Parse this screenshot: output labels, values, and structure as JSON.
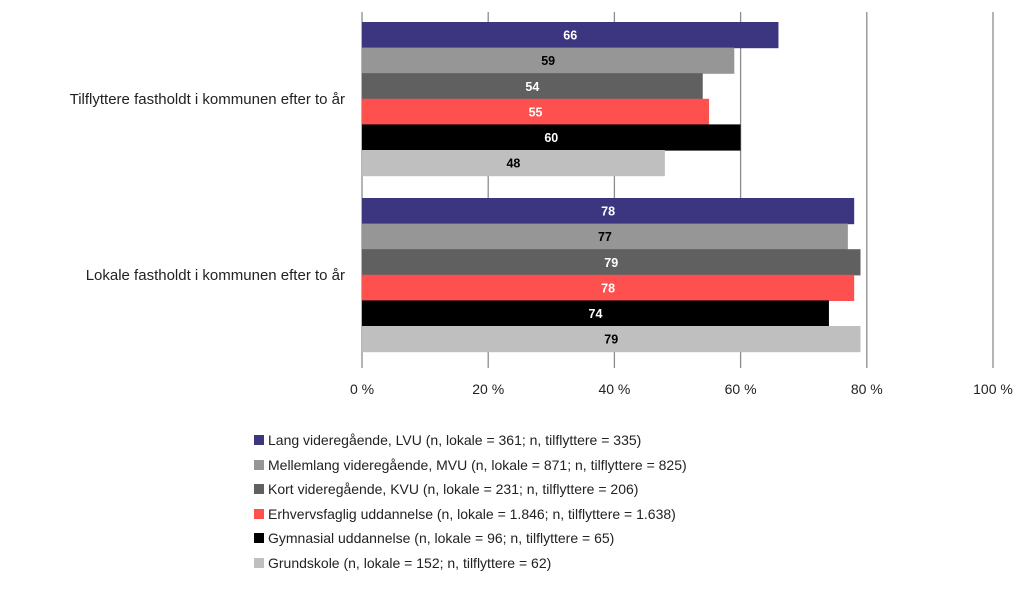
{
  "chart_data": {
    "type": "bar",
    "orientation": "horizontal",
    "title": "",
    "xlabel": "",
    "ylabel": "",
    "categories": [
      "Tilflyttere fastholdt i kommunen efter to år",
      "Lokale fastholdt i kommunen efter to år"
    ],
    "series": [
      {
        "name": "Lang videregående, LVU (n, lokale = 361; n, tilflyttere = 335)",
        "values": [
          66,
          78
        ],
        "color": "#3C3580",
        "label_color": "#ffffff"
      },
      {
        "name": "Mellemlang videregående, MVU (n, lokale = 871; n, tilflyttere = 825)",
        "values": [
          59,
          77
        ],
        "color": "#969696",
        "label_color": "#000000"
      },
      {
        "name": "Kort videregående, KVU (n, lokale = 231; n, tilflyttere = 206)",
        "values": [
          54,
          79
        ],
        "color": "#606060",
        "label_color": "#ffffff"
      },
      {
        "name": "Erhvervsfaglig uddannelse (n, lokale = 1.846; n, tilflyttere = 1.638)",
        "values": [
          55,
          78
        ],
        "color": "#FF5050",
        "label_color": "#ffffff"
      },
      {
        "name": "Gymnasial uddannelse (n, lokale = 96; n, tilflyttere = 65)",
        "values": [
          60,
          74
        ],
        "color": "#000000",
        "label_color": "#ffffff"
      },
      {
        "name": "Grundskole (n, lokale = 152; n, tilflyttere = 62)",
        "values": [
          48,
          79
        ],
        "color": "#BFBFBF",
        "label_color": "#000000"
      }
    ],
    "data_labels": [
      [
        "66",
        "59",
        "54",
        "55",
        "60",
        "48"
      ],
      [
        "78",
        "77",
        "79",
        "78",
        "74",
        "79"
      ]
    ],
    "xlim": [
      0,
      100
    ],
    "x_ticks": [
      0,
      20,
      40,
      60,
      80,
      100
    ],
    "x_tick_labels": [
      "0 %",
      "20 %",
      "40 %",
      "60 %",
      "80 %",
      "100 %"
    ],
    "grid": "vertical",
    "legend_position": "bottom"
  }
}
